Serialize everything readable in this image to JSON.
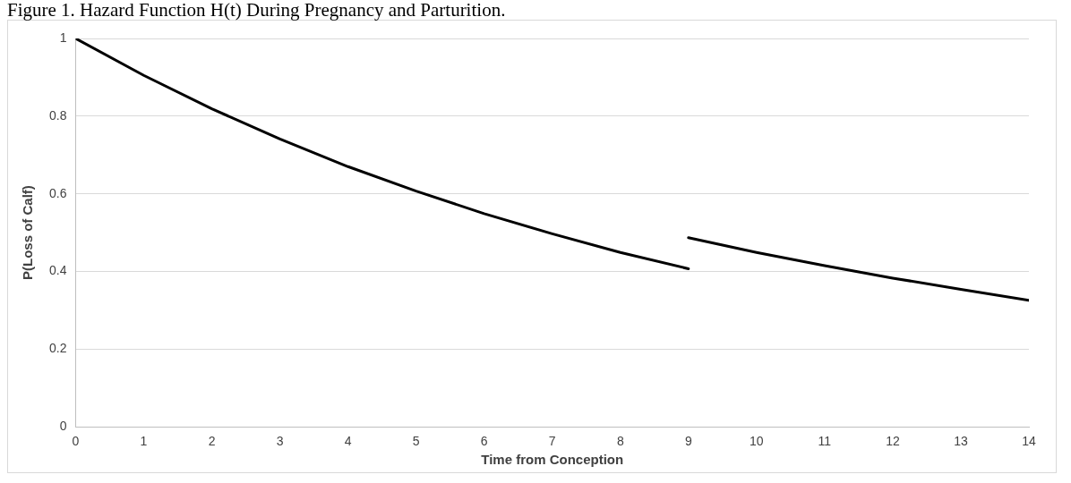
{
  "chart_data": {
    "type": "line",
    "title": "Figure 1. Hazard Function H(t) During Pregnancy and Parturition.",
    "xlabel": "Time from Conception",
    "ylabel": "P(Loss of Calf)",
    "xlim": [
      0,
      14
    ],
    "xticks": [
      0,
      1,
      2,
      3,
      4,
      5,
      6,
      7,
      8,
      9,
      10,
      11,
      12,
      13,
      14
    ],
    "ylim": [
      0,
      1
    ],
    "yticks": [
      0,
      0.2,
      0.4,
      0.6,
      0.8,
      1
    ],
    "grid": "y",
    "legend": false,
    "marker": "none",
    "line_style": "solid",
    "series": [
      {
        "color": "#000000",
        "x": [
          0,
          1,
          2,
          3,
          4,
          5,
          6,
          7,
          8,
          9
        ],
        "values": [
          1,
          0.905,
          0.819,
          0.741,
          0.67,
          0.607,
          0.549,
          0.497,
          0.449,
          0.407
        ]
      },
      {
        "color": "#000000",
        "x": [
          9,
          10,
          11,
          12,
          13,
          14
        ],
        "values": [
          0.487,
          0.449,
          0.415,
          0.383,
          0.354,
          0.326
        ]
      }
    ]
  }
}
